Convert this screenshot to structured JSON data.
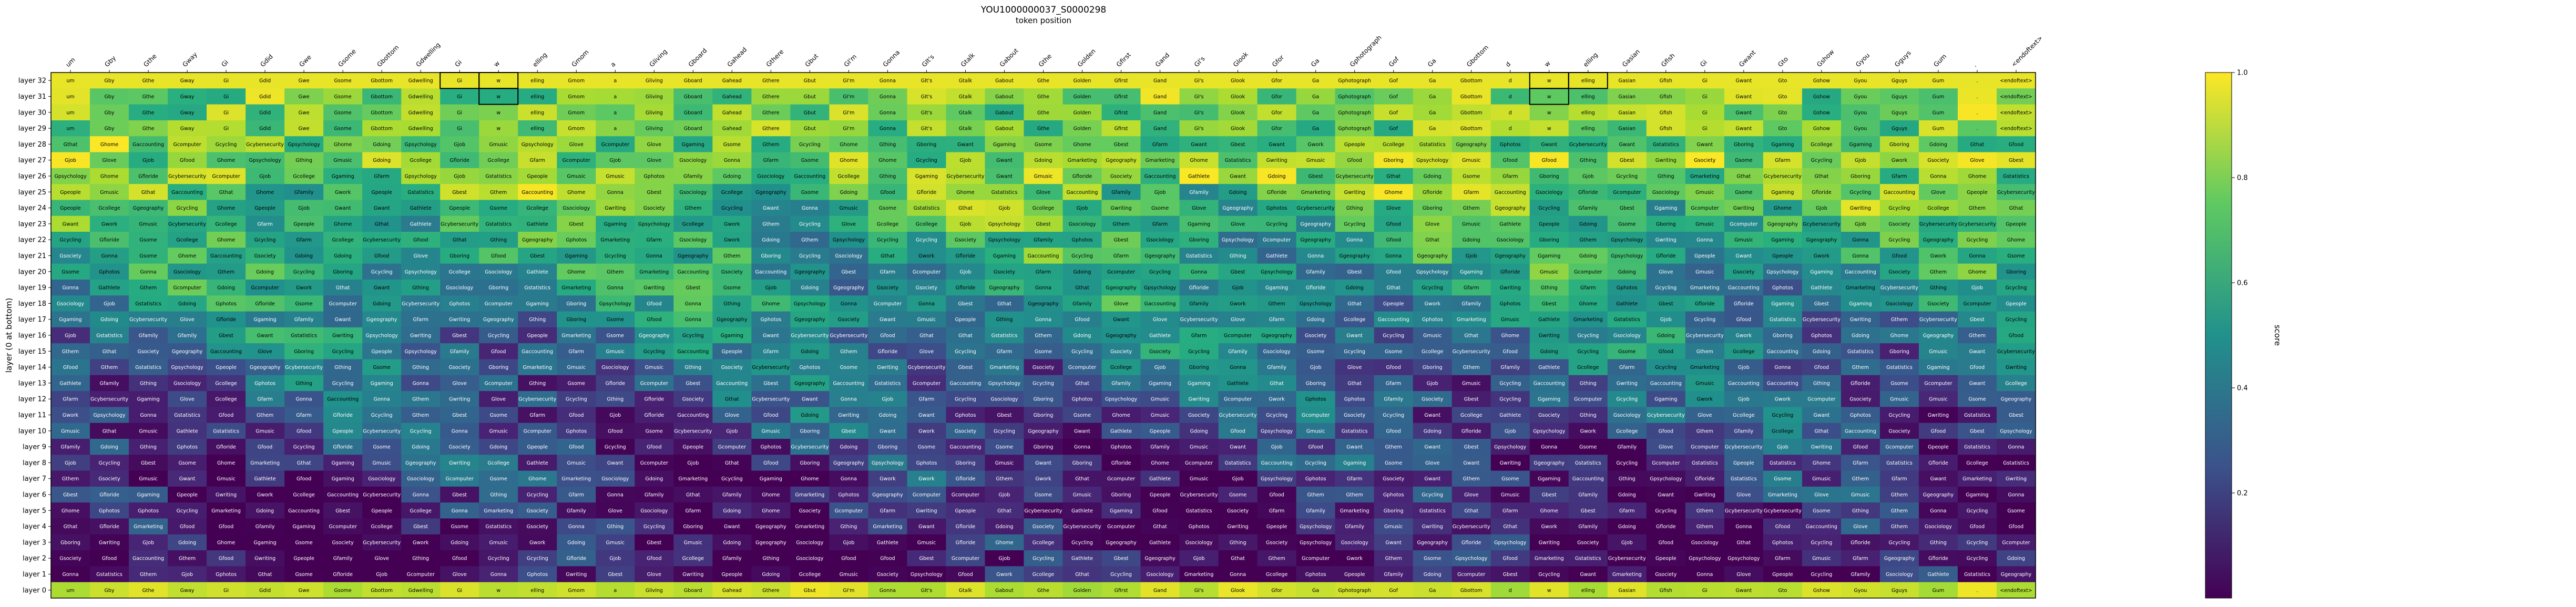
{
  "chart_data": {
    "type": "heatmap",
    "title": "YOU1000000037_S0000298",
    "xlabel": "token position",
    "ylabel": "layer (0 at bottom)",
    "colorbar_label": "score",
    "colorbar_range": [
      0,
      1
    ],
    "colorbar_ticks": [
      "0.2",
      "0.4",
      "0.6",
      "0.8",
      "1.0"
    ],
    "colormap": "viridis",
    "tokens": [
      "um",
      "Gby",
      "Gthe",
      "Gway",
      "Gi",
      "Gdid",
      "Gwe",
      "Gsome",
      "Gbottom",
      "Gdwelling",
      "Gi",
      "w",
      "elling",
      "Gmom",
      "a",
      "Gliving",
      "Gboard",
      "Gahead",
      "Gthere",
      "Gbut",
      "GI'm",
      "Gonna",
      "GIt's",
      "Gtalk",
      "Gabout",
      "Gthe",
      "Golden",
      "Gfirst",
      "Gand",
      "GI's",
      "Glook",
      "Gfor",
      "Ga",
      "Gphotograph",
      "Gof",
      "Ga",
      "Gbottom",
      "d",
      "w",
      "elling",
      "Gasian",
      "Gfish",
      "Gi",
      "Gwant",
      "Gto",
      "Gshow",
      "Gyou",
      "Gguys",
      "Gum",
      ".",
      "<endoftext>"
    ],
    "layers": [
      "layer 32",
      "layer 31",
      "layer 30",
      "layer 29",
      "layer 28",
      "layer 27",
      "layer 26",
      "layer 25",
      "layer 24",
      "layer 23",
      "layer 22",
      "layer 21",
      "layer 20",
      "layer 19",
      "layer 18",
      "layer 17",
      "layer 16",
      "layer 15",
      "layer 14",
      "layer 13",
      "layer 12",
      "layer 11",
      "layer 10",
      "layer 9",
      "layer 8",
      "layer 7",
      "layer 6",
      "layer 5",
      "layer 4",
      "layer 3",
      "layer 2",
      "layer 1",
      "layer 0"
    ],
    "cell_words": [
      "Gcomputer",
      "Gmarketing",
      "Gsociology",
      "Gcollege",
      "Gfamily",
      "Gmusic",
      "Gfood",
      "Gdoing",
      "Gthing",
      "Glove",
      "Gcycling",
      "Gboring",
      "Gwriting",
      "Gonna",
      "Gwant",
      "Gsome",
      "Gthem",
      "Gthat",
      "Gphotos",
      "Gstatistics",
      "Gpsychology",
      "Gaccounting",
      "Gcybersecurity",
      "Ggeography",
      "Gfloride",
      "Gfarm",
      "Gcycling",
      "Gbest",
      "Gjob",
      "Gpeople",
      "Gwork",
      "Gsociety",
      "Ghome",
      "Ggaming",
      "Gathlete"
    ]
  }
}
